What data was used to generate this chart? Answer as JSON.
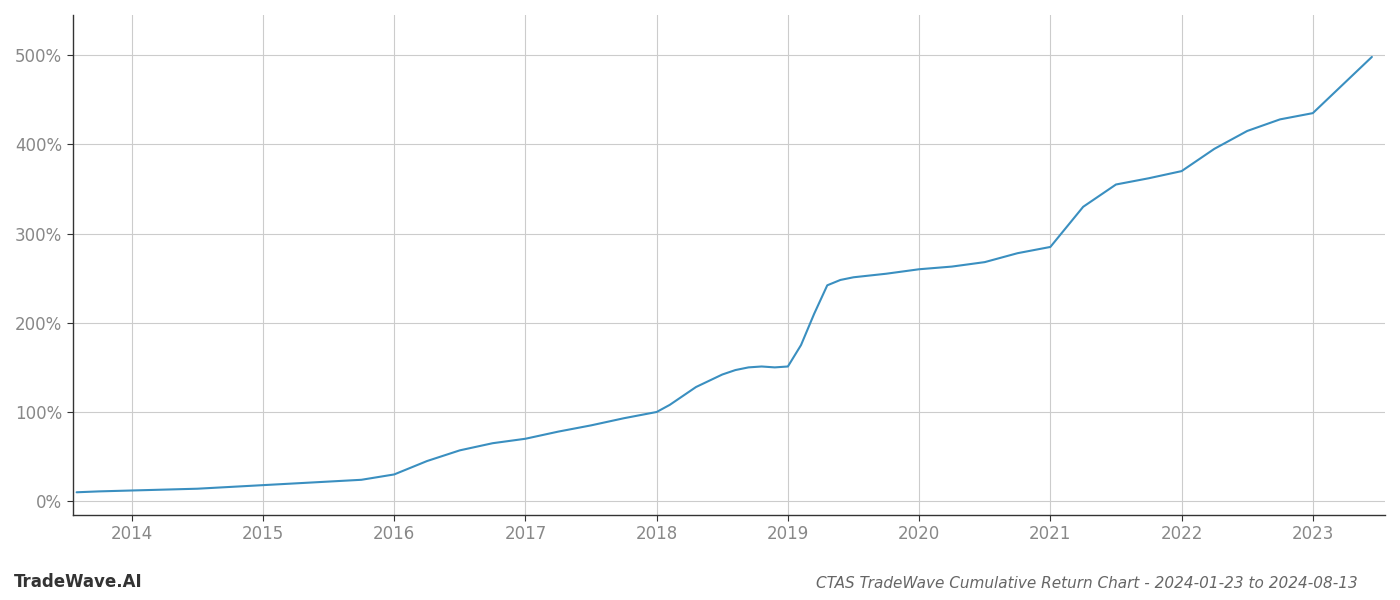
{
  "title": "CTAS TradeWave Cumulative Return Chart - 2024-01-23 to 2024-08-13",
  "watermark": "TradeWave.AI",
  "line_color": "#3a8fc0",
  "line_width": 1.5,
  "background_color": "#ffffff",
  "grid_color": "#cccccc",
  "x_years": [
    2014,
    2015,
    2016,
    2017,
    2018,
    2019,
    2020,
    2021,
    2022,
    2023
  ],
  "x_data": [
    2013.58,
    2013.75,
    2014.0,
    2014.25,
    2014.5,
    2014.75,
    2015.0,
    2015.25,
    2015.5,
    2015.75,
    2016.0,
    2016.25,
    2016.5,
    2016.75,
    2017.0,
    2017.25,
    2017.5,
    2017.75,
    2018.0,
    2018.1,
    2018.2,
    2018.3,
    2018.4,
    2018.5,
    2018.6,
    2018.7,
    2018.8,
    2018.9,
    2019.0,
    2019.1,
    2019.2,
    2019.3,
    2019.4,
    2019.5,
    2019.75,
    2020.0,
    2020.25,
    2020.5,
    2020.75,
    2021.0,
    2021.25,
    2021.5,
    2021.75,
    2022.0,
    2022.25,
    2022.5,
    2022.75,
    2023.0,
    2023.25,
    2023.45
  ],
  "y_data": [
    10,
    11,
    12,
    13,
    14,
    16,
    18,
    20,
    22,
    24,
    30,
    45,
    57,
    65,
    70,
    78,
    85,
    93,
    100,
    108,
    118,
    128,
    135,
    142,
    147,
    150,
    151,
    150,
    151,
    175,
    210,
    242,
    248,
    251,
    255,
    260,
    263,
    268,
    278,
    285,
    330,
    355,
    362,
    370,
    395,
    415,
    428,
    435,
    470,
    498
  ],
  "ylim": [
    -15,
    545
  ],
  "xlim": [
    2013.55,
    2023.55
  ],
  "yticks": [
    0,
    100,
    200,
    300,
    400,
    500
  ],
  "ytick_labels": [
    "0%",
    "100%",
    "200%",
    "300%",
    "400%",
    "500%"
  ],
  "tick_fontsize": 12,
  "title_fontsize": 11,
  "watermark_fontsize": 12
}
